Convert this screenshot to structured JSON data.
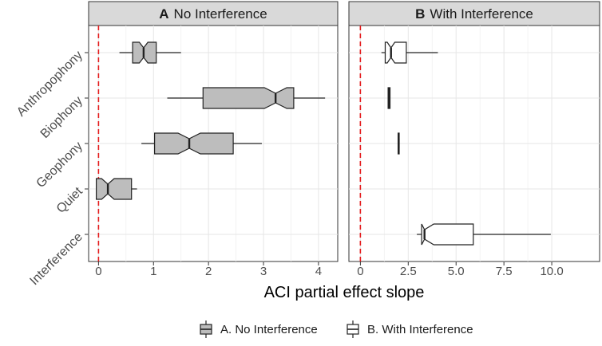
{
  "chart_data": {
    "type": "boxplot",
    "xlabel": "ACI partial effect slope",
    "categories": [
      "Anthropophony",
      "Biophony",
      "Geophony",
      "Quiet",
      "Interference"
    ],
    "reference_line": {
      "x": 0,
      "color": "#e41a1c",
      "style": "dashed"
    },
    "legend": {
      "position": "bottom",
      "entries": [
        {
          "label": "A. No Interference",
          "fill": "#bdbdbd"
        },
        {
          "label": "B. With Interference",
          "fill": "#ffffff"
        }
      ]
    },
    "panels": [
      {
        "letter": "A",
        "title": "No Interference",
        "fill": "#bdbdbd",
        "xlim": [
          -0.18,
          4.35
        ],
        "xticks": [
          0,
          1,
          2,
          3,
          4
        ],
        "xtick_labels": [
          "0",
          "1",
          "2",
          "3",
          "4"
        ],
        "boxes": [
          {
            "category": "Anthropophony",
            "whisker_low": 0.38,
            "q1": 0.62,
            "median": 0.82,
            "q3": 1.05,
            "whisker_high": 1.5
          },
          {
            "category": "Biophony",
            "whisker_low": 1.25,
            "q1": 1.9,
            "median": 3.22,
            "q3": 3.55,
            "whisker_high": 4.12
          },
          {
            "category": "Geophony",
            "whisker_low": 0.78,
            "q1": 1.02,
            "median": 1.65,
            "q3": 2.45,
            "whisker_high": 2.97
          },
          {
            "category": "Quiet",
            "whisker_low": -0.04,
            "q1": -0.04,
            "median": 0.17,
            "q3": 0.6,
            "whisker_high": 0.7
          }
        ]
      },
      {
        "letter": "B",
        "title": "With Interference",
        "fill": "#ffffff",
        "xlim": [
          -0.6,
          12.5
        ],
        "xticks": [
          0,
          2.5,
          5,
          7.5,
          10
        ],
        "xtick_labels": [
          "0",
          "2.5",
          "5.0",
          "7.5",
          "10.0"
        ],
        "boxes": [
          {
            "category": "Anthropophony",
            "whisker_low": 1.1,
            "q1": 1.3,
            "median": 1.6,
            "q3": 2.4,
            "whisker_high": 4.05
          },
          {
            "category": "Biophony",
            "whisker_low": 1.43,
            "q1": 1.45,
            "median": 1.5,
            "q3": 1.55,
            "whisker_high": 1.57
          },
          {
            "category": "Geophony",
            "whisker_low": 1.95,
            "q1": 1.97,
            "median": 2.0,
            "q3": 2.03,
            "whisker_high": 2.05
          },
          {
            "category": "Interference",
            "whisker_low": 2.95,
            "q1": 3.2,
            "median": 3.35,
            "q3": 5.9,
            "whisker_high": 9.95
          }
        ]
      }
    ]
  }
}
